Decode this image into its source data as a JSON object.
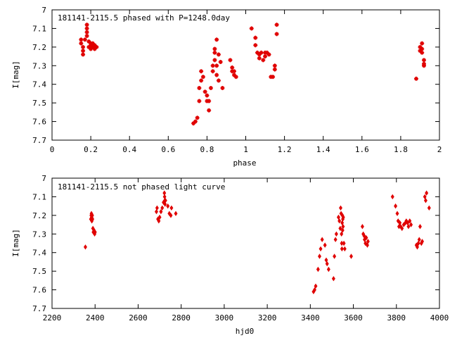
{
  "chart_data": [
    {
      "type": "scatter",
      "title": "181141-2115.5 phased with P=1248.0day",
      "xlabel": "phase",
      "ylabel": "I[mag]",
      "xlim": [
        0,
        2
      ],
      "ylim": [
        7.7,
        7
      ],
      "y_inverted": true,
      "xticks": [
        0,
        0.2,
        0.4,
        0.6,
        0.8,
        1,
        1.2,
        1.4,
        1.6,
        1.8,
        2
      ],
      "xtick_labels": [
        "0",
        "0.2",
        "0.4",
        "0.6",
        "0.8",
        "1",
        "1.2",
        "1.4",
        "1.6",
        "1.8",
        "2"
      ],
      "yticks": [
        7,
        7.1,
        7.2,
        7.3,
        7.4,
        7.5,
        7.6,
        7.7
      ],
      "ytick_labels": [
        "7",
        "7.1",
        "7.2",
        "7.3",
        "7.4",
        "7.5",
        "7.6",
        "7.7"
      ],
      "grid": false,
      "marker": "plus",
      "color": "#e00000",
      "series": [
        {
          "x": [
            0.15,
            0.15,
            0.16,
            0.16,
            0.16,
            0.17,
            0.18,
            0.18,
            0.18,
            0.18,
            0.19,
            0.19,
            0.2,
            0.2,
            0.2,
            0.21,
            0.21,
            0.22,
            0.22,
            0.23,
            0.73,
            0.74,
            0.75,
            0.76,
            0.76,
            0.77,
            0.77,
            0.78,
            0.79,
            0.8,
            0.8,
            0.81,
            0.81,
            0.82,
            0.83,
            0.83,
            0.84,
            0.84,
            0.84,
            0.85,
            0.85,
            0.85,
            0.86,
            0.86,
            0.87,
            0.88,
            0.92,
            0.93,
            0.93,
            0.94,
            0.94,
            0.95,
            1.03,
            1.05,
            1.05,
            1.06,
            1.07,
            1.07,
            1.08,
            1.09,
            1.1,
            1.1,
            1.11,
            1.12,
            1.13,
            1.14,
            1.15,
            1.15,
            1.16,
            1.16,
            1.88,
            1.9,
            1.9,
            1.91,
            1.91,
            1.91,
            1.92,
            1.92,
            1.92
          ],
          "y": [
            7.16,
            7.18,
            7.2,
            7.22,
            7.24,
            7.16,
            7.08,
            7.1,
            7.12,
            7.14,
            7.17,
            7.2,
            7.18,
            7.19,
            7.21,
            7.18,
            7.2,
            7.19,
            7.21,
            7.2,
            7.61,
            7.6,
            7.58,
            7.49,
            7.42,
            7.38,
            7.33,
            7.36,
            7.44,
            7.46,
            7.49,
            7.49,
            7.54,
            7.42,
            7.33,
            7.3,
            7.21,
            7.23,
            7.27,
            7.16,
            7.3,
            7.35,
            7.38,
            7.24,
            7.28,
            7.42,
            7.27,
            7.31,
            7.33,
            7.35,
            7.33,
            7.36,
            7.1,
            7.15,
            7.19,
            7.23,
            7.26,
            7.24,
            7.23,
            7.27,
            7.25,
            7.23,
            7.23,
            7.24,
            7.36,
            7.36,
            7.32,
            7.3,
            7.08,
            7.13,
            7.37,
            7.2,
            7.22,
            7.18,
            7.21,
            7.23,
            7.27,
            7.3,
            7.29
          ]
        }
      ]
    },
    {
      "type": "scatter",
      "title": "181141-2115.5 not phased light curve",
      "xlabel": "hjd0",
      "ylabel": "I[mag]",
      "xlim": [
        2200,
        4000
      ],
      "ylim": [
        7.7,
        7
      ],
      "y_inverted": true,
      "xticks": [
        2200,
        2400,
        2600,
        2800,
        3000,
        3200,
        3400,
        3600,
        3800,
        4000
      ],
      "xtick_labels": [
        "2200",
        "2400",
        "2600",
        "2800",
        "3000",
        "3200",
        "3400",
        "3600",
        "3800",
        "4000"
      ],
      "yticks": [
        7,
        7.1,
        7.2,
        7.3,
        7.4,
        7.5,
        7.6,
        7.7
      ],
      "ytick_labels": [
        "7",
        "7.1",
        "7.2",
        "7.3",
        "7.4",
        "7.5",
        "7.6",
        "7.7"
      ],
      "grid": false,
      "marker": "diamond",
      "color": "#e00000",
      "series": [
        {
          "x": [
            2355,
            2380,
            2382,
            2383,
            2384,
            2385,
            2386,
            2387,
            2388,
            2390,
            2392,
            2395,
            2398,
            2400,
            2685,
            2688,
            2692,
            2696,
            2700,
            2706,
            2712,
            2718,
            2722,
            2723,
            2724,
            2725,
            2727,
            2738,
            2745,
            2752,
            2755,
            2775,
            3415,
            3420,
            3425,
            3436,
            3443,
            3448,
            3455,
            3468,
            3474,
            3478,
            3485,
            3508,
            3512,
            3517,
            3521,
            3531,
            3535,
            3539,
            3541,
            3543,
            3545,
            3546,
            3547,
            3548,
            3549,
            3550,
            3551,
            3552,
            3553,
            3556,
            3560,
            3590,
            3642,
            3646,
            3650,
            3652,
            3656,
            3660,
            3665,
            3668,
            3782,
            3796,
            3804,
            3808,
            3812,
            3816,
            3820,
            3826,
            3834,
            3842,
            3846,
            3852,
            3856,
            3862,
            3868,
            3893,
            3897,
            3902,
            3906,
            3910,
            3916,
            3920,
            3932,
            3936,
            3940,
            3952
          ],
          "y": [
            7.37,
            7.22,
            7.2,
            7.19,
            7.21,
            7.23,
            7.22,
            7.2,
            7.22,
            7.27,
            7.29,
            7.28,
            7.3,
            7.29,
            7.18,
            7.16,
            7.22,
            7.23,
            7.21,
            7.18,
            7.16,
            7.13,
            7.08,
            7.1,
            7.12,
            7.14,
            7.12,
            7.15,
            7.19,
            7.2,
            7.16,
            7.19,
            7.61,
            7.6,
            7.58,
            7.49,
            7.42,
            7.38,
            7.33,
            7.36,
            7.44,
            7.46,
            7.49,
            7.54,
            7.42,
            7.33,
            7.3,
            7.21,
            7.23,
            7.27,
            7.16,
            7.19,
            7.3,
            7.35,
            7.38,
            7.24,
            7.2,
            7.28,
            7.22,
            7.26,
            7.21,
            7.35,
            7.38,
            7.42,
            7.26,
            7.3,
            7.31,
            7.33,
            7.35,
            7.32,
            7.36,
            7.34,
            7.1,
            7.15,
            7.19,
            7.23,
            7.26,
            7.24,
            7.26,
            7.27,
            7.25,
            7.24,
            7.23,
            7.24,
            7.26,
            7.23,
            7.25,
            7.36,
            7.37,
            7.35,
            7.33,
            7.26,
            7.35,
            7.34,
            7.1,
            7.12,
            7.08,
            7.16
          ]
        }
      ]
    }
  ]
}
